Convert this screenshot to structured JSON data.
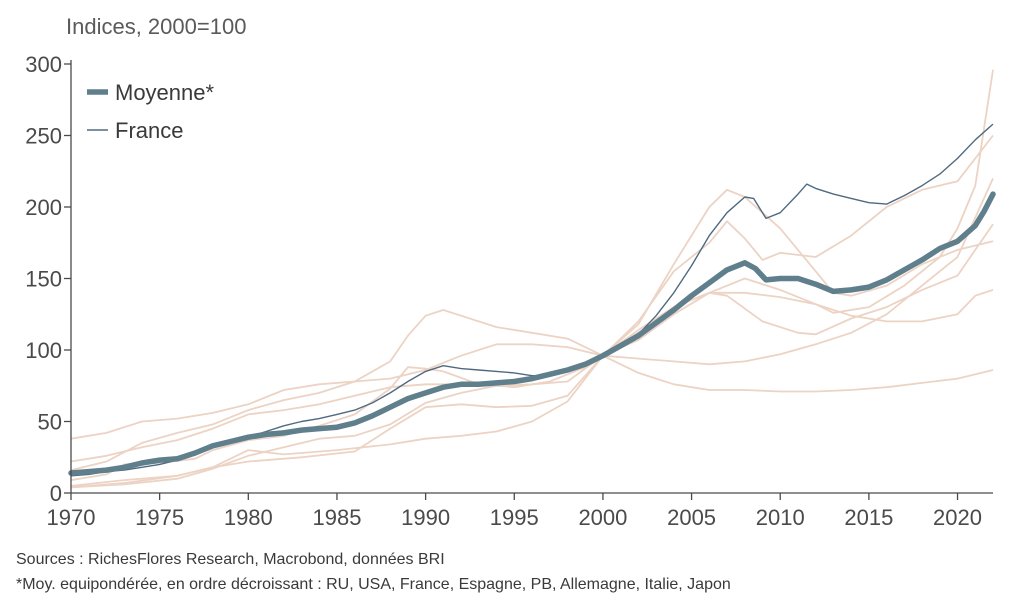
{
  "chart_data": {
    "type": "line",
    "unit_label": "Indices, 2000=100",
    "xlim": [
      1970,
      2022
    ],
    "ylim": [
      0,
      300
    ],
    "x_ticks": [
      "1970",
      "1975",
      "1980",
      "1985",
      "1990",
      "1995",
      "2000",
      "2005",
      "2010",
      "2015",
      "2020"
    ],
    "y_ticks": [
      "0",
      "50",
      "100",
      "150",
      "200",
      "250",
      "300"
    ],
    "legend": {
      "placement": "top-left",
      "entries": [
        "Moyenne*",
        "France"
      ]
    },
    "colors": {
      "moyenne": "#5f7f8c",
      "france": "#4f6a80",
      "others": "#ecd3c4",
      "axis": "#4a4a4a"
    },
    "series": [
      {
        "name": "Moyenne*",
        "role": "main",
        "points": [
          [
            1970,
            14
          ],
          [
            1971,
            15
          ],
          [
            1972,
            16
          ],
          [
            1973,
            18
          ],
          [
            1974,
            21
          ],
          [
            1975,
            23
          ],
          [
            1976,
            24
          ],
          [
            1977,
            28
          ],
          [
            1978,
            33
          ],
          [
            1979,
            36
          ],
          [
            1980,
            39
          ],
          [
            1981,
            41
          ],
          [
            1982,
            42
          ],
          [
            1983,
            44
          ],
          [
            1984,
            45
          ],
          [
            1985,
            46
          ],
          [
            1986,
            49
          ],
          [
            1987,
            54
          ],
          [
            1988,
            60
          ],
          [
            1989,
            66
          ],
          [
            1990,
            70
          ],
          [
            1991,
            74
          ],
          [
            1992,
            76
          ],
          [
            1993,
            76
          ],
          [
            1994,
            77
          ],
          [
            1995,
            78
          ],
          [
            1996,
            80
          ],
          [
            1997,
            83
          ],
          [
            1998,
            86
          ],
          [
            1999,
            90
          ],
          [
            2000,
            96
          ],
          [
            2001,
            103
          ],
          [
            2002,
            110
          ],
          [
            2003,
            119
          ],
          [
            2004,
            128
          ],
          [
            2005,
            138
          ],
          [
            2006,
            147
          ],
          [
            2007,
            156
          ],
          [
            2008,
            161
          ],
          [
            2008.6,
            157
          ],
          [
            2009.2,
            149
          ],
          [
            2010,
            150
          ],
          [
            2011,
            150
          ],
          [
            2012,
            146
          ],
          [
            2013,
            141
          ],
          [
            2014,
            142
          ],
          [
            2015,
            144
          ],
          [
            2016,
            149
          ],
          [
            2017,
            156
          ],
          [
            2018,
            163
          ],
          [
            2019,
            171
          ],
          [
            2020,
            176
          ],
          [
            2021,
            187
          ],
          [
            2021.5,
            197
          ],
          [
            2022,
            209
          ]
        ]
      },
      {
        "name": "France",
        "role": "france",
        "points": [
          [
            1970,
            12
          ],
          [
            1971,
            13
          ],
          [
            1972,
            15
          ],
          [
            1973,
            16
          ],
          [
            1974,
            18
          ],
          [
            1975,
            20
          ],
          [
            1976,
            23
          ],
          [
            1977,
            27
          ],
          [
            1978,
            32
          ],
          [
            1979,
            35
          ],
          [
            1980,
            39
          ],
          [
            1981,
            43
          ],
          [
            1982,
            47
          ],
          [
            1983,
            50
          ],
          [
            1984,
            52
          ],
          [
            1985,
            55
          ],
          [
            1986,
            58
          ],
          [
            1987,
            63
          ],
          [
            1988,
            70
          ],
          [
            1989,
            78
          ],
          [
            1990,
            85
          ],
          [
            1991,
            89
          ],
          [
            1992,
            87
          ],
          [
            1993,
            86
          ],
          [
            1994,
            85
          ],
          [
            1995,
            84
          ],
          [
            1996,
            82
          ],
          [
            1997,
            82
          ],
          [
            1998,
            85
          ],
          [
            1999,
            90
          ],
          [
            2000,
            96
          ],
          [
            2001,
            102
          ],
          [
            2002,
            111
          ],
          [
            2003,
            124
          ],
          [
            2004,
            140
          ],
          [
            2005,
            159
          ],
          [
            2006,
            180
          ],
          [
            2007,
            196
          ],
          [
            2008,
            207
          ],
          [
            2008.5,
            206
          ],
          [
            2009.2,
            192
          ],
          [
            2010,
            196
          ],
          [
            2011,
            209
          ],
          [
            2011.5,
            216
          ],
          [
            2012,
            213
          ],
          [
            2013,
            209
          ],
          [
            2014,
            206
          ],
          [
            2015,
            203
          ],
          [
            2016,
            202
          ],
          [
            2017,
            208
          ],
          [
            2018,
            215
          ],
          [
            2019,
            223
          ],
          [
            2020,
            234
          ],
          [
            2021,
            247
          ],
          [
            2022,
            258
          ]
        ]
      },
      {
        "name": "RU",
        "role": "other",
        "points": [
          [
            1970,
            9
          ],
          [
            1972,
            13
          ],
          [
            1973,
            20
          ],
          [
            1975,
            21
          ],
          [
            1977,
            24
          ],
          [
            1978,
            30
          ],
          [
            1980,
            37
          ],
          [
            1982,
            40
          ],
          [
            1984,
            47
          ],
          [
            1986,
            55
          ],
          [
            1988,
            73
          ],
          [
            1989,
            88
          ],
          [
            1990,
            87
          ],
          [
            1991,
            85
          ],
          [
            1993,
            76
          ],
          [
            1995,
            74
          ],
          [
            1997,
            78
          ],
          [
            1999,
            88
          ],
          [
            2000,
            96
          ],
          [
            2002,
            120
          ],
          [
            2004,
            155
          ],
          [
            2006,
            175
          ],
          [
            2007,
            190
          ],
          [
            2008,
            178
          ],
          [
            2009,
            163
          ],
          [
            2010,
            168
          ],
          [
            2012,
            165
          ],
          [
            2014,
            180
          ],
          [
            2016,
            200
          ],
          [
            2018,
            212
          ],
          [
            2020,
            218
          ],
          [
            2022,
            250
          ]
        ]
      },
      {
        "name": "USA",
        "role": "other",
        "points": [
          [
            1970,
            22
          ],
          [
            1972,
            26
          ],
          [
            1974,
            32
          ],
          [
            1976,
            37
          ],
          [
            1978,
            45
          ],
          [
            1980,
            55
          ],
          [
            1982,
            58
          ],
          [
            1984,
            62
          ],
          [
            1986,
            68
          ],
          [
            1988,
            74
          ],
          [
            1990,
            76
          ],
          [
            1992,
            76
          ],
          [
            1994,
            78
          ],
          [
            1996,
            80
          ],
          [
            1998,
            86
          ],
          [
            2000,
            96
          ],
          [
            2002,
            107
          ],
          [
            2004,
            125
          ],
          [
            2006,
            140
          ],
          [
            2007,
            138
          ],
          [
            2009,
            120
          ],
          [
            2011,
            112
          ],
          [
            2012,
            111
          ],
          [
            2014,
            122
          ],
          [
            2016,
            130
          ],
          [
            2018,
            142
          ],
          [
            2020,
            152
          ],
          [
            2022,
            188
          ]
        ]
      },
      {
        "name": "Espagne",
        "role": "other",
        "points": [
          [
            1970,
            4
          ],
          [
            1973,
            7
          ],
          [
            1976,
            12
          ],
          [
            1978,
            18
          ],
          [
            1980,
            22
          ],
          [
            1983,
            25
          ],
          [
            1986,
            29
          ],
          [
            1988,
            45
          ],
          [
            1990,
            60
          ],
          [
            1992,
            62
          ],
          [
            1994,
            60
          ],
          [
            1996,
            61
          ],
          [
            1998,
            68
          ],
          [
            2000,
            96
          ],
          [
            2002,
            118
          ],
          [
            2004,
            160
          ],
          [
            2006,
            200
          ],
          [
            2007,
            212
          ],
          [
            2008,
            207
          ],
          [
            2010,
            185
          ],
          [
            2012,
            155
          ],
          [
            2013,
            140
          ],
          [
            2014,
            138
          ],
          [
            2016,
            145
          ],
          [
            2018,
            160
          ],
          [
            2020,
            170
          ],
          [
            2022,
            176
          ]
        ]
      },
      {
        "name": "PB",
        "role": "other",
        "points": [
          [
            1970,
            5
          ],
          [
            1973,
            9
          ],
          [
            1976,
            12
          ],
          [
            1978,
            18
          ],
          [
            1980,
            30
          ],
          [
            1982,
            27
          ],
          [
            1985,
            30
          ],
          [
            1988,
            34
          ],
          [
            1990,
            38
          ],
          [
            1992,
            40
          ],
          [
            1994,
            43
          ],
          [
            1996,
            50
          ],
          [
            1998,
            64
          ],
          [
            2000,
            96
          ],
          [
            2002,
            114
          ],
          [
            2004,
            130
          ],
          [
            2006,
            140
          ],
          [
            2008,
            150
          ],
          [
            2010,
            142
          ],
          [
            2012,
            132
          ],
          [
            2013,
            126
          ],
          [
            2015,
            130
          ],
          [
            2017,
            145
          ],
          [
            2019,
            165
          ],
          [
            2020,
            185
          ],
          [
            2021,
            215
          ],
          [
            2022,
            296
          ]
        ]
      },
      {
        "name": "Allemagne",
        "role": "other",
        "points": [
          [
            1970,
            38
          ],
          [
            1972,
            42
          ],
          [
            1974,
            50
          ],
          [
            1976,
            52
          ],
          [
            1978,
            56
          ],
          [
            1980,
            62
          ],
          [
            1982,
            72
          ],
          [
            1984,
            76
          ],
          [
            1986,
            78
          ],
          [
            1988,
            80
          ],
          [
            1990,
            86
          ],
          [
            1992,
            96
          ],
          [
            1994,
            104
          ],
          [
            1996,
            104
          ],
          [
            1998,
            102
          ],
          [
            2000,
            96
          ],
          [
            2002,
            94
          ],
          [
            2004,
            92
          ],
          [
            2006,
            90
          ],
          [
            2008,
            92
          ],
          [
            2010,
            97
          ],
          [
            2012,
            104
          ],
          [
            2014,
            112
          ],
          [
            2016,
            125
          ],
          [
            2018,
            145
          ],
          [
            2020,
            165
          ],
          [
            2022,
            220
          ]
        ]
      },
      {
        "name": "Italie",
        "role": "other",
        "points": [
          [
            1970,
            4
          ],
          [
            1973,
            6
          ],
          [
            1976,
            10
          ],
          [
            1978,
            17
          ],
          [
            1980,
            26
          ],
          [
            1982,
            32
          ],
          [
            1984,
            38
          ],
          [
            1986,
            40
          ],
          [
            1988,
            48
          ],
          [
            1990,
            63
          ],
          [
            1992,
            70
          ],
          [
            1994,
            75
          ],
          [
            1996,
            76
          ],
          [
            1998,
            78
          ],
          [
            2000,
            96
          ],
          [
            2002,
            112
          ],
          [
            2004,
            130
          ],
          [
            2006,
            140
          ],
          [
            2008,
            140
          ],
          [
            2010,
            137
          ],
          [
            2012,
            132
          ],
          [
            2014,
            124
          ],
          [
            2016,
            120
          ],
          [
            2018,
            120
          ],
          [
            2020,
            125
          ],
          [
            2021,
            138
          ],
          [
            2022,
            142
          ]
        ]
      },
      {
        "name": "Japon",
        "role": "other",
        "points": [
          [
            1970,
            16
          ],
          [
            1972,
            22
          ],
          [
            1974,
            35
          ],
          [
            1976,
            42
          ],
          [
            1978,
            48
          ],
          [
            1980,
            58
          ],
          [
            1982,
            65
          ],
          [
            1984,
            70
          ],
          [
            1986,
            78
          ],
          [
            1988,
            92
          ],
          [
            1989,
            110
          ],
          [
            1990,
            124
          ],
          [
            1991,
            128
          ],
          [
            1992,
            124
          ],
          [
            1994,
            116
          ],
          [
            1996,
            112
          ],
          [
            1998,
            108
          ],
          [
            2000,
            96
          ],
          [
            2002,
            84
          ],
          [
            2004,
            76
          ],
          [
            2006,
            72
          ],
          [
            2008,
            72
          ],
          [
            2010,
            71
          ],
          [
            2012,
            71
          ],
          [
            2014,
            72
          ],
          [
            2016,
            74
          ],
          [
            2018,
            77
          ],
          [
            2020,
            80
          ],
          [
            2022,
            86
          ]
        ]
      }
    ]
  },
  "footnotes": {
    "source": "Sources : RichesFlores Research, Macrobond, données BRI",
    "note": "*Moy. equipondérée, en ordre décroissant : RU, USA, France, Espagne, PB, Allemagne, Italie, Japon"
  }
}
